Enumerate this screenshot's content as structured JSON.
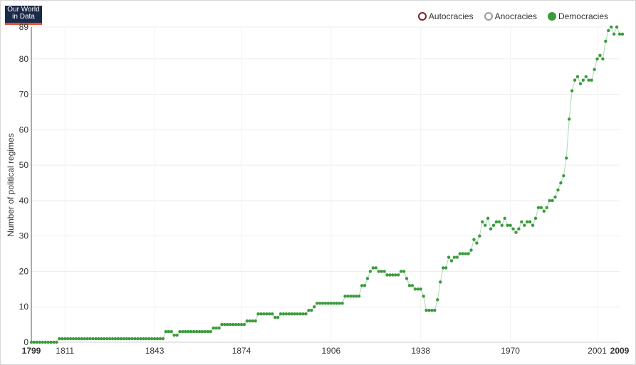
{
  "logo": {
    "line1": "Our World",
    "line2": "in Data"
  },
  "legend": [
    {
      "label": "Autocracies",
      "color": "#7f1d24",
      "filled": false
    },
    {
      "label": "Anocracies",
      "color": "#9a9a9a",
      "filled": false
    },
    {
      "label": "Democracies",
      "color": "#3a9b3a",
      "filled": true
    }
  ],
  "chart_data": {
    "type": "line",
    "title": "",
    "xlabel": "",
    "ylabel": "Number of political regimes",
    "xlim": [
      1799,
      2009
    ],
    "ylim": [
      0,
      89
    ],
    "yticks": [
      0,
      10,
      20,
      30,
      40,
      50,
      60,
      70,
      80,
      89
    ],
    "xticks": [
      1799,
      1811,
      1843,
      1874,
      1906,
      1938,
      1970,
      2001,
      2009
    ],
    "bold_xticks": [
      1799,
      2009
    ],
    "grid": true,
    "legend_position": "top-right",
    "series": [
      {
        "name": "Democracies",
        "color": "#3a9b3a",
        "points": [
          [
            1799,
            0
          ],
          [
            1800,
            0
          ],
          [
            1801,
            0
          ],
          [
            1802,
            0
          ],
          [
            1803,
            0
          ],
          [
            1804,
            0
          ],
          [
            1805,
            0
          ],
          [
            1806,
            0
          ],
          [
            1807,
            0
          ],
          [
            1808,
            0
          ],
          [
            1809,
            1
          ],
          [
            1810,
            1
          ],
          [
            1811,
            1
          ],
          [
            1812,
            1
          ],
          [
            1813,
            1
          ],
          [
            1814,
            1
          ],
          [
            1815,
            1
          ],
          [
            1816,
            1
          ],
          [
            1817,
            1
          ],
          [
            1818,
            1
          ],
          [
            1819,
            1
          ],
          [
            1820,
            1
          ],
          [
            1821,
            1
          ],
          [
            1822,
            1
          ],
          [
            1823,
            1
          ],
          [
            1824,
            1
          ],
          [
            1825,
            1
          ],
          [
            1826,
            1
          ],
          [
            1827,
            1
          ],
          [
            1828,
            1
          ],
          [
            1829,
            1
          ],
          [
            1830,
            1
          ],
          [
            1831,
            1
          ],
          [
            1832,
            1
          ],
          [
            1833,
            1
          ],
          [
            1834,
            1
          ],
          [
            1835,
            1
          ],
          [
            1836,
            1
          ],
          [
            1837,
            1
          ],
          [
            1838,
            1
          ],
          [
            1839,
            1
          ],
          [
            1840,
            1
          ],
          [
            1841,
            1
          ],
          [
            1842,
            1
          ],
          [
            1843,
            1
          ],
          [
            1844,
            1
          ],
          [
            1845,
            1
          ],
          [
            1846,
            1
          ],
          [
            1847,
            3
          ],
          [
            1848,
            3
          ],
          [
            1849,
            3
          ],
          [
            1850,
            2
          ],
          [
            1851,
            2
          ],
          [
            1852,
            3
          ],
          [
            1853,
            3
          ],
          [
            1854,
            3
          ],
          [
            1855,
            3
          ],
          [
            1856,
            3
          ],
          [
            1857,
            3
          ],
          [
            1858,
            3
          ],
          [
            1859,
            3
          ],
          [
            1860,
            3
          ],
          [
            1861,
            3
          ],
          [
            1862,
            3
          ],
          [
            1863,
            3
          ],
          [
            1864,
            4
          ],
          [
            1865,
            4
          ],
          [
            1866,
            4
          ],
          [
            1867,
            5
          ],
          [
            1868,
            5
          ],
          [
            1869,
            5
          ],
          [
            1870,
            5
          ],
          [
            1871,
            5
          ],
          [
            1872,
            5
          ],
          [
            1873,
            5
          ],
          [
            1874,
            5
          ],
          [
            1875,
            5
          ],
          [
            1876,
            6
          ],
          [
            1877,
            6
          ],
          [
            1878,
            6
          ],
          [
            1879,
            6
          ],
          [
            1880,
            8
          ],
          [
            1881,
            8
          ],
          [
            1882,
            8
          ],
          [
            1883,
            8
          ],
          [
            1884,
            8
          ],
          [
            1885,
            8
          ],
          [
            1886,
            7
          ],
          [
            1887,
            7
          ],
          [
            1888,
            8
          ],
          [
            1889,
            8
          ],
          [
            1890,
            8
          ],
          [
            1891,
            8
          ],
          [
            1892,
            8
          ],
          [
            1893,
            8
          ],
          [
            1894,
            8
          ],
          [
            1895,
            8
          ],
          [
            1896,
            8
          ],
          [
            1897,
            8
          ],
          [
            1898,
            9
          ],
          [
            1899,
            9
          ],
          [
            1900,
            10
          ],
          [
            1901,
            11
          ],
          [
            1902,
            11
          ],
          [
            1903,
            11
          ],
          [
            1904,
            11
          ],
          [
            1905,
            11
          ],
          [
            1906,
            11
          ],
          [
            1907,
            11
          ],
          [
            1908,
            11
          ],
          [
            1909,
            11
          ],
          [
            1910,
            11
          ],
          [
            1911,
            13
          ],
          [
            1912,
            13
          ],
          [
            1913,
            13
          ],
          [
            1914,
            13
          ],
          [
            1915,
            13
          ],
          [
            1916,
            13
          ],
          [
            1917,
            16
          ],
          [
            1918,
            16
          ],
          [
            1919,
            18
          ],
          [
            1920,
            20
          ],
          [
            1921,
            21
          ],
          [
            1922,
            21
          ],
          [
            1923,
            20
          ],
          [
            1924,
            20
          ],
          [
            1925,
            20
          ],
          [
            1926,
            19
          ],
          [
            1927,
            19
          ],
          [
            1928,
            19
          ],
          [
            1929,
            19
          ],
          [
            1930,
            19
          ],
          [
            1931,
            20
          ],
          [
            1932,
            20
          ],
          [
            1933,
            18
          ],
          [
            1934,
            16
          ],
          [
            1935,
            16
          ],
          [
            1936,
            15
          ],
          [
            1937,
            15
          ],
          [
            1938,
            15
          ],
          [
            1939,
            13
          ],
          [
            1940,
            9
          ],
          [
            1941,
            9
          ],
          [
            1942,
            9
          ],
          [
            1943,
            9
          ],
          [
            1944,
            12
          ],
          [
            1945,
            17
          ],
          [
            1946,
            21
          ],
          [
            1947,
            21
          ],
          [
            1948,
            24
          ],
          [
            1949,
            23
          ],
          [
            1950,
            24
          ],
          [
            1951,
            24
          ],
          [
            1952,
            25
          ],
          [
            1953,
            25
          ],
          [
            1954,
            25
          ],
          [
            1955,
            25
          ],
          [
            1956,
            26
          ],
          [
            1957,
            29
          ],
          [
            1958,
            28
          ],
          [
            1959,
            30
          ],
          [
            1960,
            34
          ],
          [
            1961,
            33
          ],
          [
            1962,
            35
          ],
          [
            1963,
            32
          ],
          [
            1964,
            33
          ],
          [
            1965,
            34
          ],
          [
            1966,
            34
          ],
          [
            1967,
            33
          ],
          [
            1968,
            35
          ],
          [
            1969,
            33
          ],
          [
            1970,
            33
          ],
          [
            1971,
            32
          ],
          [
            1972,
            31
          ],
          [
            1973,
            32
          ],
          [
            1974,
            34
          ],
          [
            1975,
            33
          ],
          [
            1976,
            34
          ],
          [
            1977,
            34
          ],
          [
            1978,
            33
          ],
          [
            1979,
            35
          ],
          [
            1980,
            38
          ],
          [
            1981,
            38
          ],
          [
            1982,
            37
          ],
          [
            1983,
            38
          ],
          [
            1984,
            40
          ],
          [
            1985,
            40
          ],
          [
            1986,
            41
          ],
          [
            1987,
            43
          ],
          [
            1988,
            45
          ],
          [
            1989,
            47
          ],
          [
            1990,
            52
          ],
          [
            1991,
            63
          ],
          [
            1992,
            71
          ],
          [
            1993,
            74
          ],
          [
            1994,
            75
          ],
          [
            1995,
            73
          ],
          [
            1996,
            74
          ],
          [
            1997,
            75
          ],
          [
            1998,
            74
          ],
          [
            1999,
            74
          ],
          [
            2000,
            77
          ],
          [
            2001,
            80
          ],
          [
            2002,
            81
          ],
          [
            2003,
            80
          ],
          [
            2004,
            85
          ],
          [
            2005,
            88
          ],
          [
            2006,
            89
          ],
          [
            2007,
            87
          ],
          [
            2008,
            89
          ],
          [
            2009,
            87
          ],
          [
            2010,
            87
          ]
        ]
      }
    ]
  }
}
